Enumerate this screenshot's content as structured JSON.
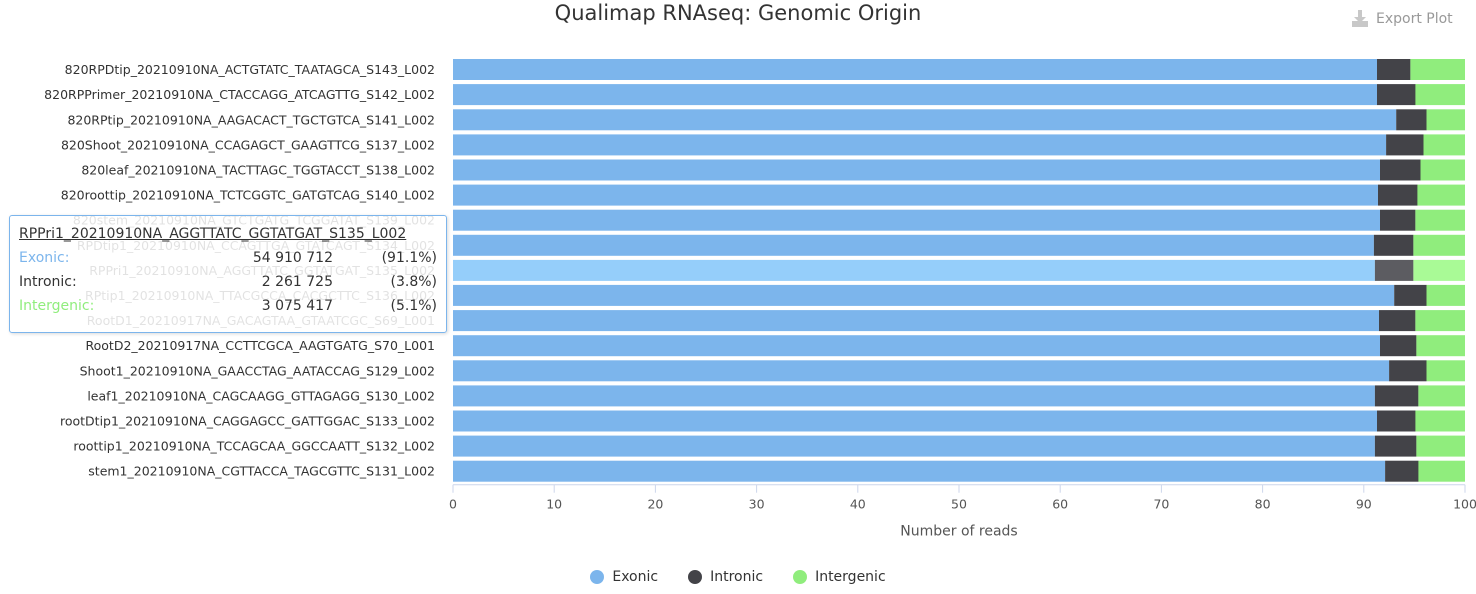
{
  "title": "Qualimap RNAseq: Genomic Origin",
  "export_label": "Export Plot",
  "legend": [
    {
      "name": "Exonic",
      "color": "#7cb5ec"
    },
    {
      "name": "Intronic",
      "color": "#434348"
    },
    {
      "name": "Intergenic",
      "color": "#90ed7d"
    }
  ],
  "tooltip": {
    "sample": "RPPri1_20210910NA_AGGTTATC_GGTATGAT_S135_L002",
    "rows": [
      {
        "name": "Exonic:",
        "count": "54 910 712",
        "pct": "(91.1%)",
        "color": "#7cb5ec"
      },
      {
        "name": "Intronic:",
        "count": "2 261 725",
        "pct": "(3.8%)",
        "color": "#333333"
      },
      {
        "name": "Intergenic:",
        "count": "3 075 417",
        "pct": "(5.1%)",
        "color": "#90ed7d"
      }
    ]
  },
  "chart_data": {
    "type": "bar",
    "orientation": "horizontal",
    "stacked": "percent",
    "xlabel": "Number of reads",
    "xlim": [
      0,
      100
    ],
    "xticks": [
      "0",
      "10",
      "20",
      "30",
      "40",
      "50",
      "60",
      "70",
      "80",
      "90",
      "100"
    ],
    "grid": false,
    "legend_position": "bottom-center",
    "highlighted_category": "RPPri1_20210910NA_AGGTTATC_GGTATGAT_S135_L002",
    "categories": [
      "820RPDtip_20210910NA_ACTGTATC_TAATAGCA_S143_L002",
      "820RPPrimer_20210910NA_CTACCAGG_ATCAGTTG_S142_L002",
      "820RPtip_20210910NA_AAGACACT_TGCTGTCA_S141_L002",
      "820Shoot_20210910NA_CCAGAGCT_GAAGTTCG_S137_L002",
      "820leaf_20210910NA_TACTTAGC_TGGTACCT_S138_L002",
      "820roottip_20210910NA_TCTCGGTC_GATGTCAG_S140_L002",
      "820stem_20210910NA_GTCTGATG_TCGGATAT_S139_L002",
      "RPDtip1_20210910NA_CCAGTTGA_GTATCAGT_S134_L002",
      "RPPri1_20210910NA_AGGTTATC_GGTATGAT_S135_L002",
      "RPtip1_20210910NA_TTACGCCA_CACGCTTC_S136_L002",
      "RootD1_20210917NA_GACAGTAA_GTAATCGC_S69_L001",
      "RootD2_20210917NA_CCTTCGCA_AAGTGATG_S70_L001",
      "Shoot1_20210910NA_GAACCTAG_AATACCAG_S129_L002",
      "leaf1_20210910NA_CAGCAAGG_GTTAGAGG_S130_L002",
      "rootDtip1_20210910NA_CAGGAGCC_GATTGGAC_S133_L002",
      "roottip1_20210910NA_TCCAGCAA_GGCCAATT_S132_L002",
      "stem1_20210910NA_CGTTACCA_TAGCGTTC_S131_L002"
    ],
    "series": [
      {
        "name": "Exonic",
        "color": "#7cb5ec",
        "values": [
          91.3,
          91.3,
          93.2,
          92.2,
          91.6,
          91.4,
          91.6,
          91.0,
          91.1,
          93.0,
          91.5,
          91.6,
          92.5,
          91.1,
          91.3,
          91.1,
          92.1
        ]
      },
      {
        "name": "Intronic",
        "color": "#434348",
        "values": [
          3.3,
          3.8,
          3.0,
          3.7,
          4.0,
          3.9,
          3.5,
          3.9,
          3.8,
          3.2,
          3.6,
          3.6,
          3.7,
          4.3,
          3.8,
          4.1,
          3.3
        ]
      },
      {
        "name": "Intergenic",
        "color": "#90ed7d",
        "values": [
          5.4,
          4.9,
          3.8,
          4.1,
          4.4,
          4.7,
          4.9,
          5.1,
          5.1,
          3.8,
          4.9,
          4.8,
          3.8,
          4.6,
          4.9,
          4.8,
          4.6
        ]
      }
    ]
  }
}
